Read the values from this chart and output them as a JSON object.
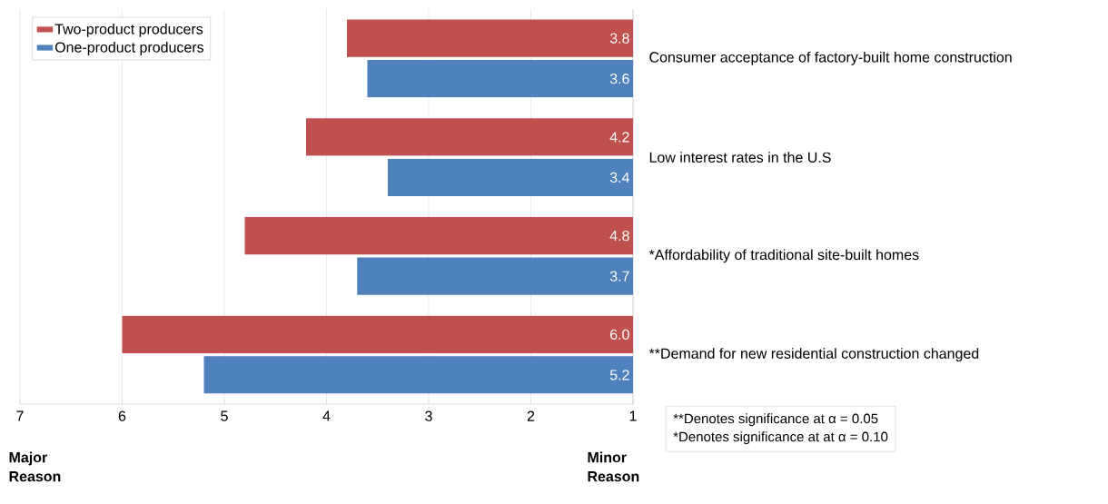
{
  "chart_data": {
    "type": "bar",
    "orientation": "horizontal",
    "categories": [
      "Consumer acceptance of factory-built home construction",
      "Low interest rates in the U.S",
      "*Affordability of traditional site-built homes",
      "**Demand for new residential construction changed"
    ],
    "series": [
      {
        "name": "Two-product producers",
        "color": "#c0504d",
        "values": [
          3.8,
          4.2,
          4.8,
          6.0
        ],
        "value_labels": [
          "3.8",
          "4.2",
          "4.8",
          "6.0"
        ]
      },
      {
        "name": "One-product producers",
        "color": "#4f81bd",
        "values": [
          3.6,
          3.4,
          3.7,
          5.2
        ],
        "value_labels": [
          "3.6",
          "3.4",
          "3.7",
          "5.2"
        ]
      }
    ],
    "xlim": [
      7,
      1
    ],
    "xticks": [
      7,
      6,
      5,
      4,
      3,
      2,
      1
    ],
    "grid": "x",
    "legend": "top left",
    "annotations": [
      "Major Reason",
      "Minor Reason",
      "**Denotes significance at α = 0.05",
      "*Denotes significance at at α = 0.10"
    ]
  }
}
